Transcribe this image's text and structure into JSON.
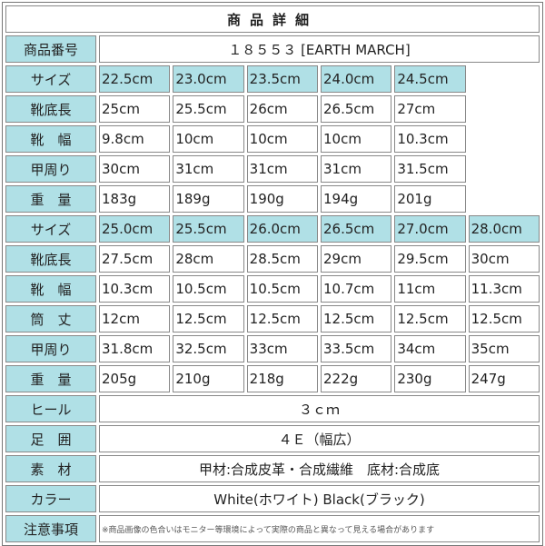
{
  "title": "商品詳細",
  "product_number": {
    "label": "商品番号",
    "value": "１８５５３ [EARTH MARCH]"
  },
  "groups": [
    {
      "rows": [
        {
          "label": "サイズ",
          "type": "size",
          "values": [
            "22.5cm",
            "23.0cm",
            "23.5cm",
            "24.0cm",
            "24.5cm"
          ]
        },
        {
          "label": "靴底長",
          "values": [
            "25cm",
            "25.5cm",
            "26cm",
            "26.5cm",
            "27cm"
          ]
        },
        {
          "label": "靴　幅",
          "values": [
            "9.8cm",
            "10cm",
            "10cm",
            "10cm",
            "10.3cm"
          ]
        },
        {
          "label": "甲周り",
          "values": [
            "30cm",
            "31cm",
            "31cm",
            "31cm",
            "31.5cm"
          ]
        },
        {
          "label": "重　量",
          "values": [
            "183g",
            "189g",
            "190g",
            "194g",
            "201g"
          ]
        }
      ]
    },
    {
      "rows": [
        {
          "label": "サイズ",
          "type": "size",
          "values": [
            "25.0cm",
            "25.5cm",
            "26.0cm",
            "26.5cm",
            "27.0cm",
            "28.0cm"
          ]
        },
        {
          "label": "靴底長",
          "values": [
            "27.5cm",
            "28cm",
            "28.5cm",
            "29cm",
            "29.5cm",
            "30cm"
          ]
        },
        {
          "label": "靴　幅",
          "values": [
            "10.3cm",
            "10.5cm",
            "10.5cm",
            "10.7cm",
            "11cm",
            "11.3cm"
          ]
        },
        {
          "label": "筒　丈",
          "values": [
            "12cm",
            "12.5cm",
            "12.5cm",
            "12.5cm",
            "12.5cm",
            "12.5cm"
          ]
        },
        {
          "label": "甲周り",
          "values": [
            "31.8cm",
            "32.5cm",
            "33cm",
            "33.5cm",
            "34cm",
            "35cm"
          ]
        },
        {
          "label": "重　量",
          "values": [
            "205g",
            "210g",
            "218g",
            "222g",
            "230g",
            "247g"
          ]
        }
      ]
    }
  ],
  "specs": [
    {
      "label": "ヒール",
      "value": "３ｃｍ"
    },
    {
      "label": "足　囲",
      "value": "４Ｅ（幅広）"
    },
    {
      "label": "素　材",
      "value": "甲材:合成皮革・合成繊維　底材:合成底"
    },
    {
      "label": "カラー",
      "value": "White(ホワイト) Black(ブラック)"
    },
    {
      "label": "注意事項",
      "value": "※商品画像の色合いはモニター等環境によって実際の商品と異なって見える場合があります",
      "type": "note"
    }
  ],
  "colors": {
    "label_bg": "#b0e0e6",
    "border": "#888888"
  }
}
